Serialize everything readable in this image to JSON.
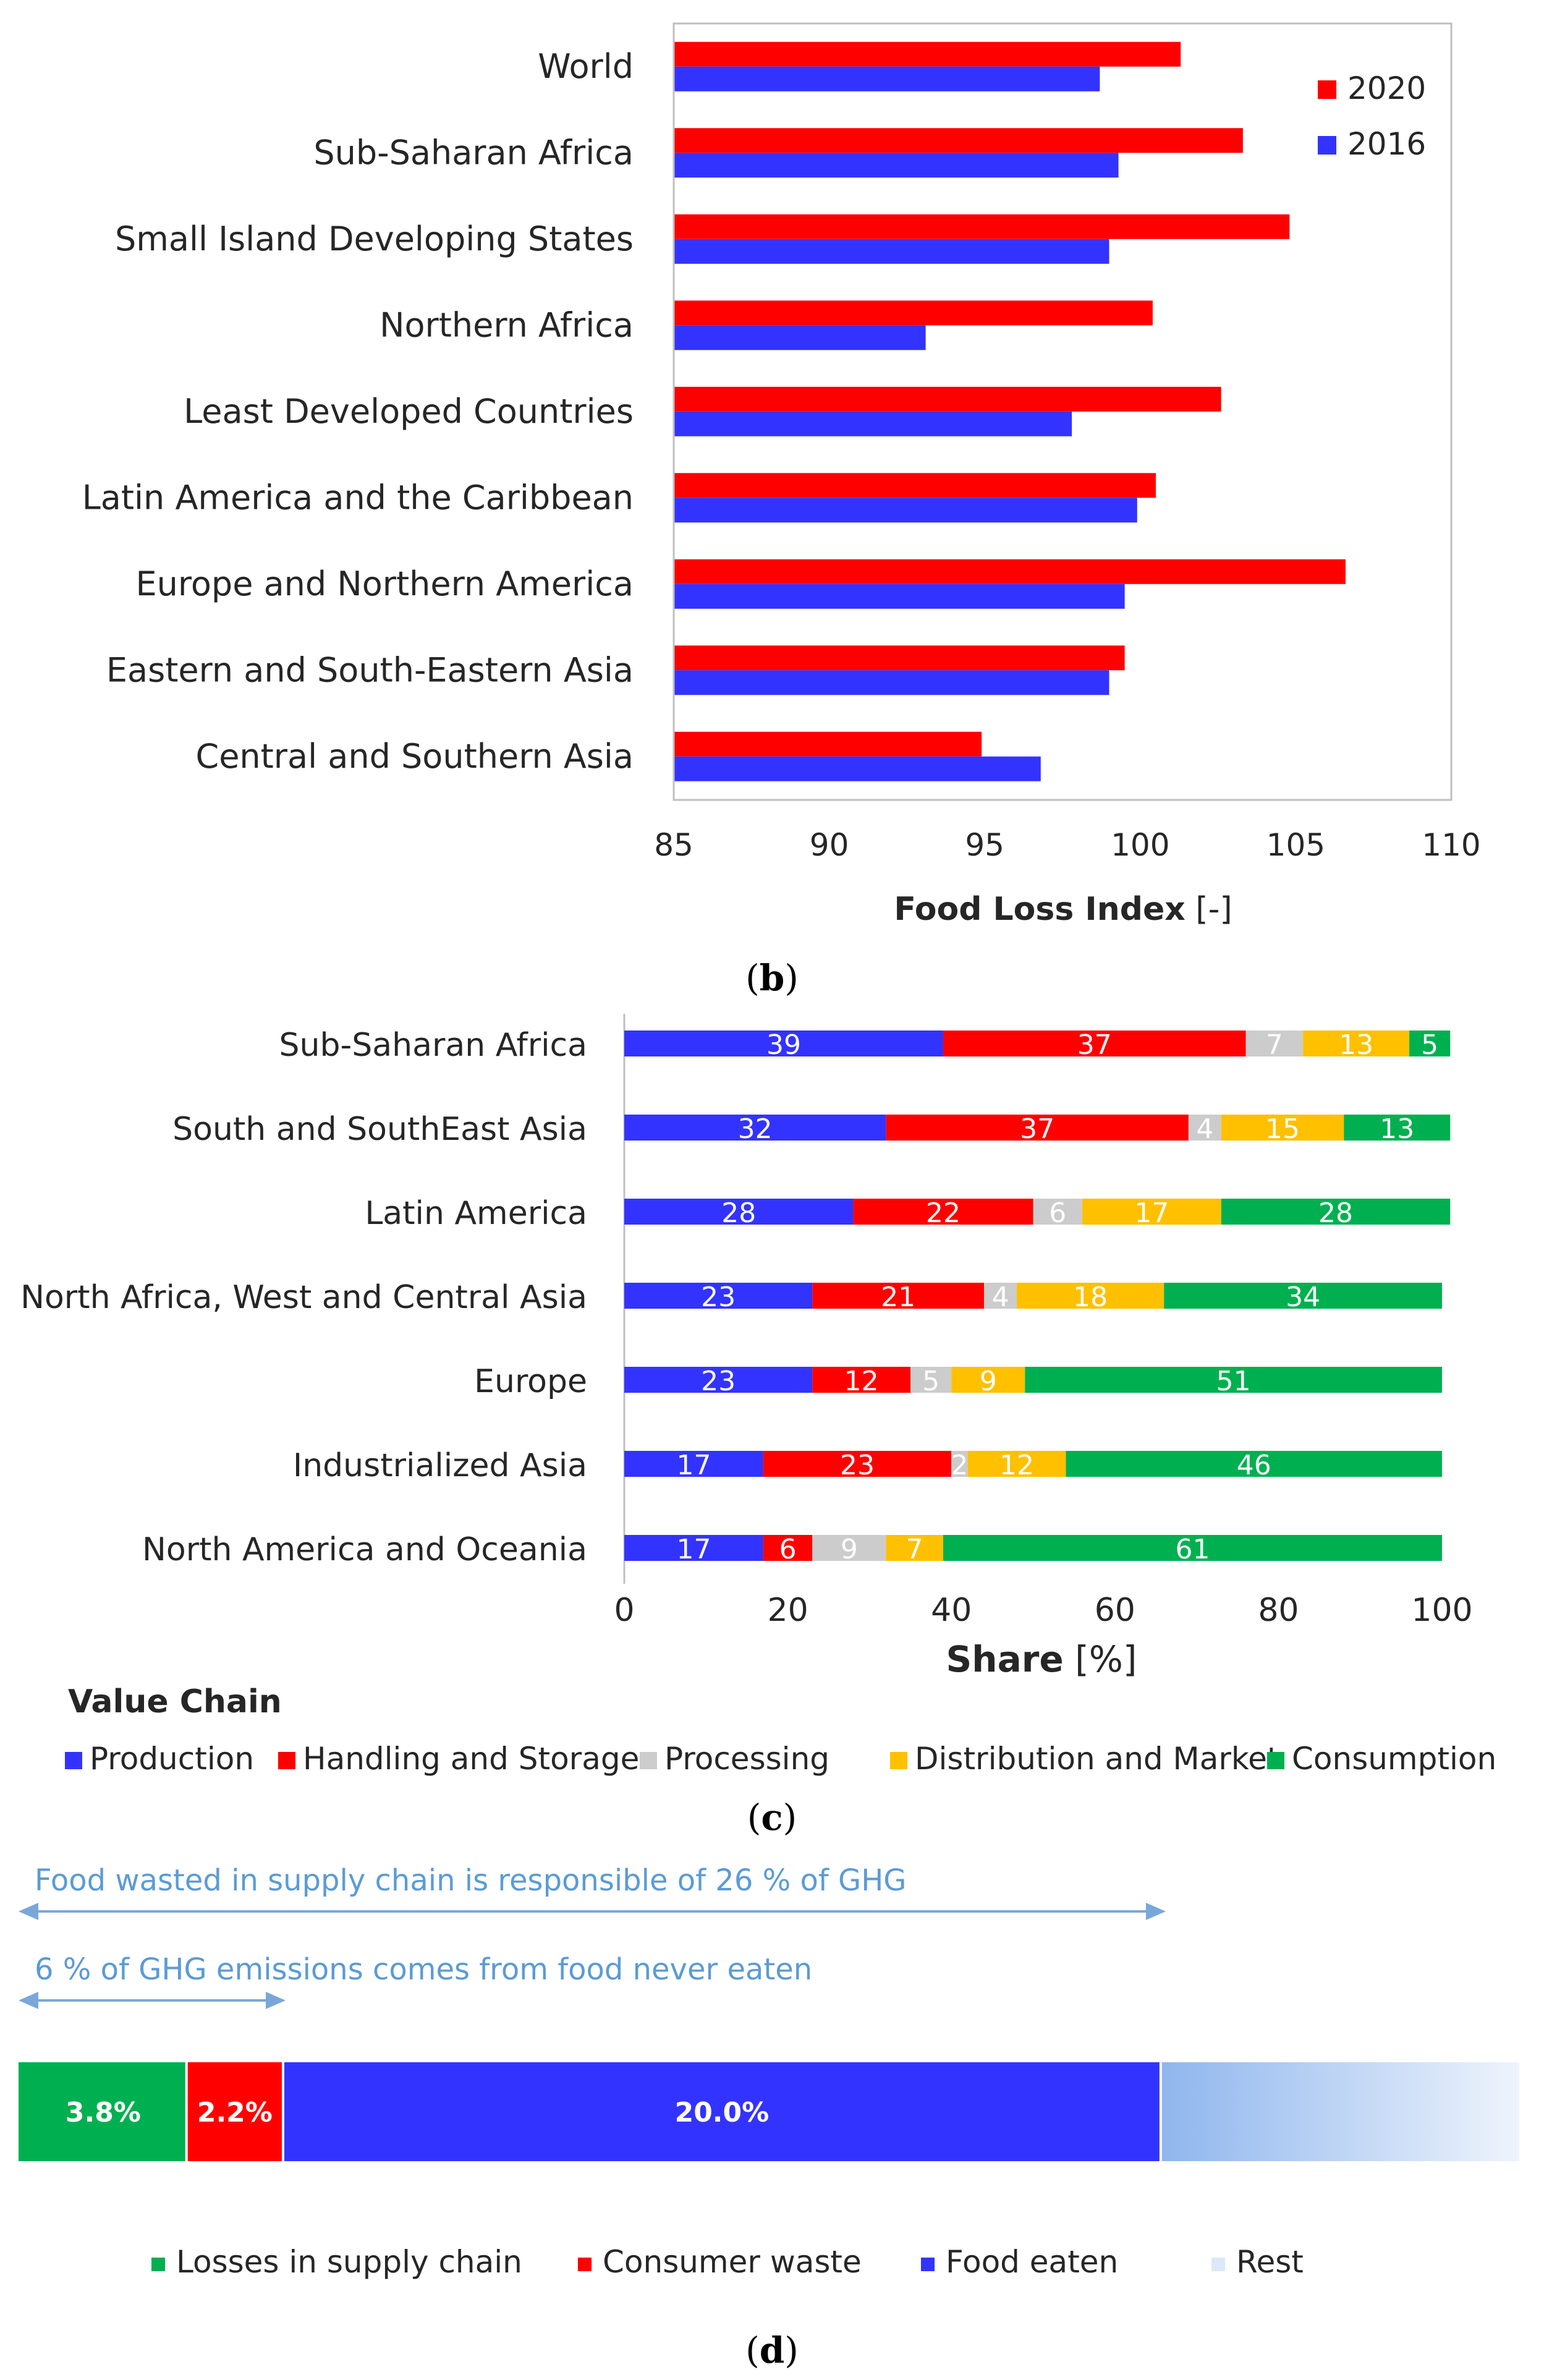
{
  "panels": {
    "b": {
      "caption_prefix": "(",
      "caption_letter": "b",
      "caption_suffix": ")",
      "chart_data": {
        "type": "bar",
        "orientation": "horizontal",
        "categories": [
          "World",
          "Sub-Saharan Africa",
          "Small Island Developing States",
          "Northern Africa",
          "Least Developed Countries",
          "Latin America and the Caribbean",
          "Europe and Northern America",
          "Eastern and South-Eastern Asia",
          "Central and Southern Asia"
        ],
        "series": [
          {
            "name": "2020",
            "color": "#ff0000",
            "values": [
              101.3,
              103.3,
              104.8,
              100.4,
              102.6,
              100.5,
              106.6,
              99.5,
              94.9
            ]
          },
          {
            "name": "2016",
            "color": "#3333ff",
            "values": [
              98.7,
              99.3,
              99.0,
              93.1,
              97.8,
              99.9,
              99.5,
              99.0,
              96.8
            ]
          }
        ],
        "xlim": [
          85,
          110
        ],
        "xticks": [
          "85",
          "90",
          "95",
          "100",
          "105",
          "110"
        ],
        "xlabel_bold": "Food Loss Index",
        "xlabel_unit": " [-]",
        "legend": "top-right"
      }
    },
    "c": {
      "caption_prefix": "(",
      "caption_letter": "c",
      "caption_suffix": ")",
      "chart_data": {
        "type": "bar",
        "orientation": "horizontal",
        "stacked": true,
        "categories": [
          "Sub-Saharan Africa",
          "South and SouthEast Asia",
          "Latin America",
          "North Africa, West and Central Asia",
          "Europe",
          "Industrialized Asia",
          "North America and Oceania"
        ],
        "series": [
          {
            "name": "Production",
            "color": "#3333ff",
            "values": [
              39,
              32,
              28,
              23,
              23,
              17,
              17
            ]
          },
          {
            "name": "Handling and Storage",
            "color": "#ff0000",
            "values": [
              37,
              37,
              22,
              21,
              12,
              23,
              6
            ]
          },
          {
            "name": "Processing",
            "color": "#cccccc",
            "values": [
              7,
              4,
              6,
              4,
              5,
              2,
              9
            ]
          },
          {
            "name": "Distribution and Market",
            "color": "#ffc000",
            "values": [
              13,
              15,
              17,
              18,
              9,
              12,
              7
            ]
          },
          {
            "name": "Consumption",
            "color": "#00b050",
            "values": [
              5,
              13,
              28,
              34,
              51,
              46,
              61
            ]
          }
        ],
        "xlim": [
          0,
          100
        ],
        "xticks": [
          "0",
          "20",
          "40",
          "60",
          "80",
          "100"
        ],
        "xlabel_bold": "Share",
        "xlabel_unit": " [%]",
        "legend_title": "Value Chain",
        "legend": "bottom"
      }
    },
    "d": {
      "caption_prefix": "(",
      "caption_letter": "d",
      "caption_suffix": ")",
      "annotations": [
        "Food wasted in supply chain is responsible of 26 % of GHG",
        "6 % of GHG emissions comes from food never eaten"
      ],
      "chart_data": {
        "type": "bar",
        "orientation": "horizontal",
        "stacked": true,
        "segments": [
          {
            "name": "Losses in supply chain",
            "color": "#00b050",
            "value": 3.8,
            "label": "3.8%"
          },
          {
            "name": "Consumer waste",
            "color": "#ff0000",
            "value": 2.2,
            "label": "2.2%"
          },
          {
            "name": "Food eaten",
            "color": "#3333ff",
            "value": 20.0,
            "label": "20.0%"
          },
          {
            "name": "Rest",
            "color": "#dce9f8",
            "value": 8.2,
            "label": ""
          }
        ],
        "legend": "bottom"
      }
    }
  }
}
